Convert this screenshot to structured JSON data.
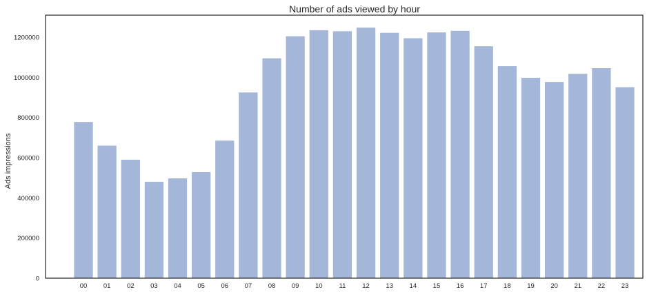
{
  "chart_data": {
    "type": "bar",
    "title": "Number of ads viewed by hour",
    "xlabel": "",
    "ylabel": "Ads impressions",
    "categories": [
      "00",
      "01",
      "02",
      "03",
      "04",
      "05",
      "06",
      "07",
      "08",
      "09",
      "10",
      "11",
      "12",
      "13",
      "14",
      "15",
      "16",
      "17",
      "18",
      "19",
      "20",
      "21",
      "22",
      "23"
    ],
    "values": [
      778000,
      660000,
      590000,
      480000,
      497000,
      528000,
      685000,
      925000,
      1095000,
      1205000,
      1235000,
      1230000,
      1248000,
      1222000,
      1195000,
      1224000,
      1232000,
      1155000,
      1056000,
      998000,
      977000,
      1018000,
      1046000,
      951000
    ],
    "ylim": [
      0,
      1310000
    ],
    "yticks": [
      0,
      200000,
      400000,
      600000,
      800000,
      1000000,
      1200000
    ],
    "ytick_labels": [
      "0",
      "200000",
      "400000",
      "600000",
      "800000",
      "1000000",
      "1200000"
    ],
    "grid": false,
    "bar_color": "#a5b7d8",
    "frame_color": "#262626"
  }
}
